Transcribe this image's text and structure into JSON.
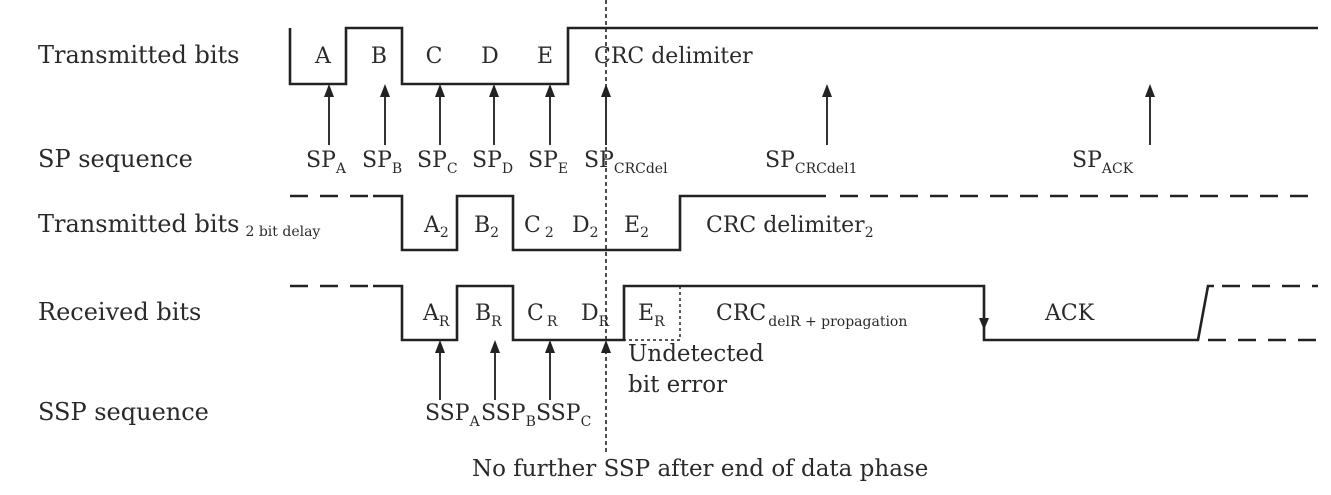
{
  "rows": {
    "transmitted": "Transmitted bits",
    "sp_sequence": "SP sequence",
    "transmitted_delay": "Transmitted bits",
    "transmitted_delay_sub": "2 bit delay",
    "received": "Received bits",
    "ssp_sequence": "SSP sequence"
  },
  "tx_bits": [
    "A",
    "B",
    "C",
    "D",
    "E"
  ],
  "tx_crc": "CRC delimiter",
  "sp_labels": [
    {
      "main": "SP",
      "sub": "A"
    },
    {
      "main": "SP",
      "sub": "B"
    },
    {
      "main": "SP",
      "sub": "C"
    },
    {
      "main": "SP",
      "sub": "D"
    },
    {
      "main": "SP",
      "sub": "E"
    },
    {
      "main": "SP",
      "sub": "CRCdel"
    },
    {
      "main": "SP",
      "sub": "CRCdel1"
    },
    {
      "main": "SP",
      "sub": "ACK"
    }
  ],
  "delay_bits": [
    {
      "main": "A",
      "sub": "2"
    },
    {
      "main": "B",
      "sub": "2"
    },
    {
      "main": "C",
      "sub": "2"
    },
    {
      "main": "D",
      "sub": "2"
    },
    {
      "main": "E",
      "sub": "2"
    }
  ],
  "delay_crc": {
    "main": "CRC delimiter",
    "sub": "2"
  },
  "rx_bits": [
    {
      "main": "A",
      "sub": "R"
    },
    {
      "main": "B",
      "sub": "R"
    },
    {
      "main": "C",
      "sub": "R"
    },
    {
      "main": "D",
      "sub": "R"
    },
    {
      "main": "E",
      "sub": "R"
    }
  ],
  "rx_crc": {
    "main": "CRC",
    "sub": "delR + propagation"
  },
  "rx_ack": "ACK",
  "ssp_labels": [
    {
      "main": "SSP",
      "sub": "A"
    },
    {
      "main": "SSP",
      "sub": "B"
    },
    {
      "main": "SSP",
      "sub": "C"
    }
  ],
  "undetected_line1": "Undetected",
  "undetected_line2": "bit error",
  "footer_note": "No further SSP after end of data phase"
}
